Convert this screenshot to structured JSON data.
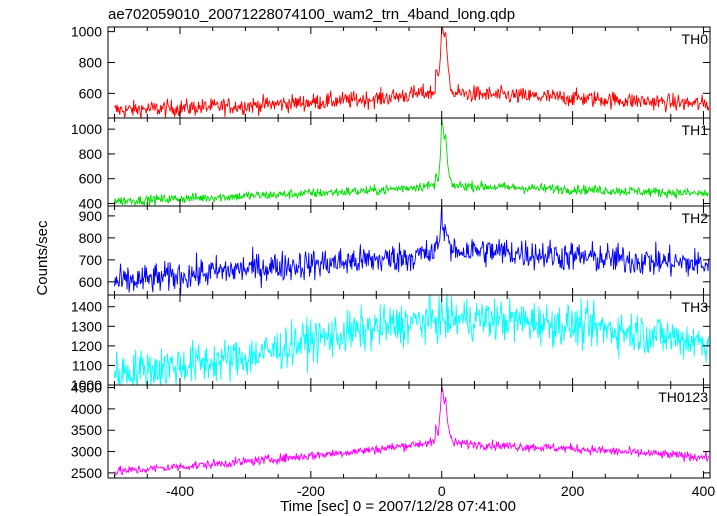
{
  "chart_data": {
    "type": "line",
    "title": "ae702059010_20071228074100_wam2_trn_4band_long.qdp",
    "xlabel": "Time [sec] 0 = 2007/12/28 07:41:00",
    "ylabel": "Counts/sec",
    "xlim": [
      -510,
      410
    ],
    "x_ticks": [
      -400,
      -200,
      0,
      200,
      400
    ],
    "grid": false,
    "panels": [
      {
        "name": "TH0",
        "color": "#ff0000",
        "ylim": [
          440,
          1030
        ],
        "y_ticks": [
          600,
          800,
          1000
        ],
        "baseline": {
          "x": [
            -500,
            -300,
            -100,
            -20,
            20,
            100,
            200,
            400
          ],
          "y": [
            490,
            520,
            565,
            605,
            600,
            585,
            570,
            530
          ]
        },
        "noise": 28,
        "flare": {
          "x": [
            -10,
            -5,
            -2,
            0,
            2,
            4,
            6,
            9,
            12,
            16
          ],
          "y": [
            760,
            700,
            860,
            1030,
            1000,
            950,
            1010,
            800,
            680,
            620
          ]
        },
        "points": 900
      },
      {
        "name": "TH1",
        "color": "#00e000",
        "ylim": [
          380,
          1090
        ],
        "y_ticks": [
          400,
          600,
          800,
          1000
        ],
        "baseline": {
          "x": [
            -500,
            -300,
            -100,
            -20,
            20,
            100,
            200,
            400
          ],
          "y": [
            420,
            460,
            505,
            545,
            545,
            530,
            515,
            480
          ]
        },
        "noise": 20,
        "flare": {
          "x": [
            -10,
            -5,
            -2,
            0,
            2,
            4,
            6,
            9,
            12,
            16
          ],
          "y": [
            640,
            590,
            780,
            1070,
            1010,
            900,
            960,
            720,
            610,
            570
          ]
        },
        "points": 900
      },
      {
        "name": "TH2",
        "color": "#0000ff",
        "ylim": [
          540,
          945
        ],
        "y_ticks": [
          600,
          700,
          800,
          900
        ],
        "baseline": {
          "x": [
            -500,
            -300,
            -100,
            -20,
            20,
            100,
            200,
            400
          ],
          "y": [
            595,
            660,
            700,
            725,
            745,
            735,
            715,
            680
          ]
        },
        "noise": 35,
        "flare": {
          "x": [
            -8,
            -4,
            -1,
            0,
            2,
            4,
            7,
            10,
            14
          ],
          "y": [
            800,
            760,
            880,
            930,
            860,
            820,
            850,
            780,
            760
          ]
        },
        "points": 900
      },
      {
        "name": "TH3",
        "color": "#00ffff",
        "ylim": [
          1000,
          1460
        ],
        "y_ticks": [
          1000,
          1100,
          1200,
          1300,
          1400
        ],
        "baseline": {
          "x": [
            -500,
            -400,
            -300,
            -200,
            -100,
            -20,
            50,
            150,
            300,
            400
          ],
          "y": [
            1060,
            1100,
            1140,
            1230,
            1290,
            1330,
            1340,
            1320,
            1270,
            1220
          ]
        },
        "noise": 55,
        "flare": {
          "x": [],
          "y": []
        },
        "points": 900
      },
      {
        "name": "TH0123",
        "color": "#ff00ff",
        "ylim": [
          2380,
          4560
        ],
        "y_ticks": [
          2500,
          3000,
          3500,
          4000,
          4500
        ],
        "baseline": {
          "x": [
            -500,
            -300,
            -100,
            -20,
            20,
            100,
            200,
            400
          ],
          "y": [
            2530,
            2760,
            3050,
            3210,
            3200,
            3130,
            3070,
            2870
          ]
        },
        "noise": 55,
        "flare": {
          "x": [
            -10,
            -5,
            -2,
            0,
            2,
            4,
            6,
            9,
            12,
            16
          ],
          "y": [
            3650,
            3400,
            4000,
            4530,
            4380,
            4100,
            4300,
            3700,
            3400,
            3300
          ]
        },
        "points": 900
      }
    ]
  }
}
